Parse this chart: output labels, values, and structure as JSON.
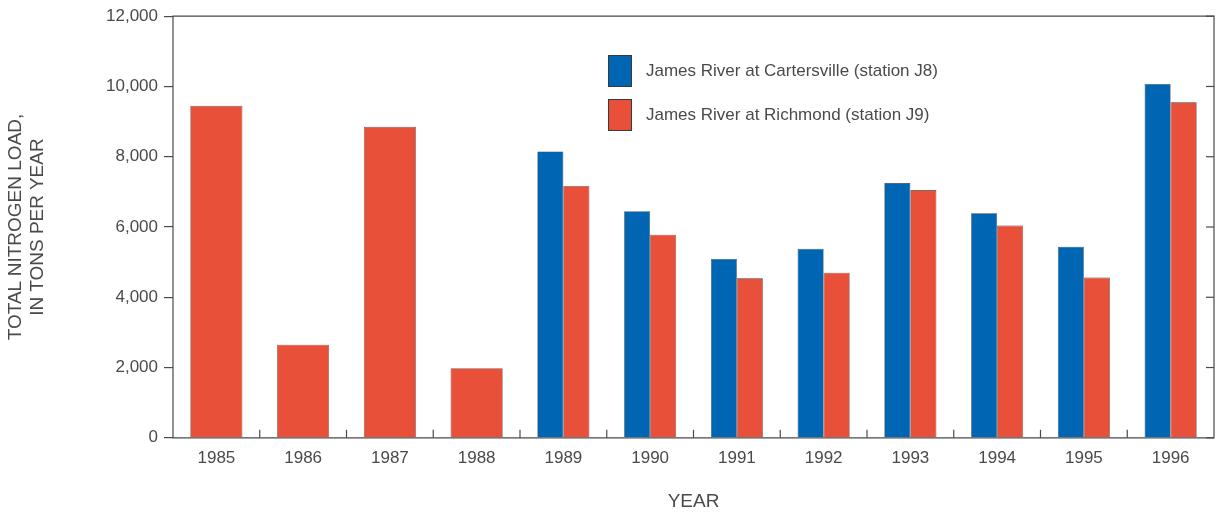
{
  "chart_data": {
    "type": "bar",
    "xlabel": "YEAR",
    "ylabel": "TOTAL NITROGEN LOAD,\nIN TONS PER YEAR",
    "categories": [
      "1985",
      "1986",
      "1987",
      "1988",
      "1989",
      "1990",
      "1991",
      "1992",
      "1993",
      "1994",
      "1995",
      "1996"
    ],
    "series": [
      {
        "name": "James River at Cartersville (station J8)",
        "color": "#0066b3",
        "values": [
          null,
          null,
          null,
          null,
          8150,
          6450,
          5090,
          5380,
          7250,
          6390,
          5440,
          10070
        ]
      },
      {
        "name": "James River at Richmond (station J9)",
        "color": "#e8503a",
        "values": [
          9450,
          2650,
          8850,
          1980,
          7170,
          5780,
          4540,
          4700,
          7050,
          6040,
          4560,
          9550
        ]
      }
    ],
    "ylim": [
      0,
      12000
    ],
    "yticks": [
      {
        "value": 0,
        "label": "0"
      },
      {
        "value": 2000,
        "label": "2,000"
      },
      {
        "value": 4000,
        "label": "4,000"
      },
      {
        "value": 6000,
        "label": "6,000"
      },
      {
        "value": 8000,
        "label": "8,000"
      },
      {
        "value": 10000,
        "label": "10,000"
      },
      {
        "value": 12000,
        "label": "12,000"
      }
    ],
    "grid": false,
    "legend": "top right"
  }
}
